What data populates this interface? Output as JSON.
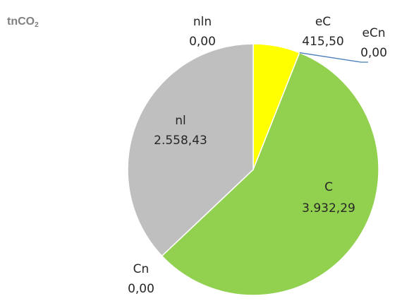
{
  "chart_data": {
    "type": "pie",
    "unit_label": {
      "main": "tnCO",
      "subscript": "2"
    },
    "slices": [
      {
        "label": "eC",
        "value": 415.5,
        "value_text": "415,50",
        "color": "#ffff00"
      },
      {
        "label": "eCn",
        "value": 0.0,
        "value_text": "0,00",
        "color": "#4f81bd"
      },
      {
        "label": "C",
        "value": 3932.29,
        "value_text": "3.932,29",
        "color": "#92d050"
      },
      {
        "label": "Cn",
        "value": 0.0,
        "value_text": "0,00",
        "color": "#92d050"
      },
      {
        "label": "nl",
        "value": 2558.43,
        "value_text": "2.558,43",
        "color": "#bfbfbf"
      },
      {
        "label": "nln",
        "value": 0.0,
        "value_text": "0,00",
        "color": "#bfbfbf"
      }
    ],
    "legend": "none",
    "leader_line_color": "#4a7ebb"
  }
}
